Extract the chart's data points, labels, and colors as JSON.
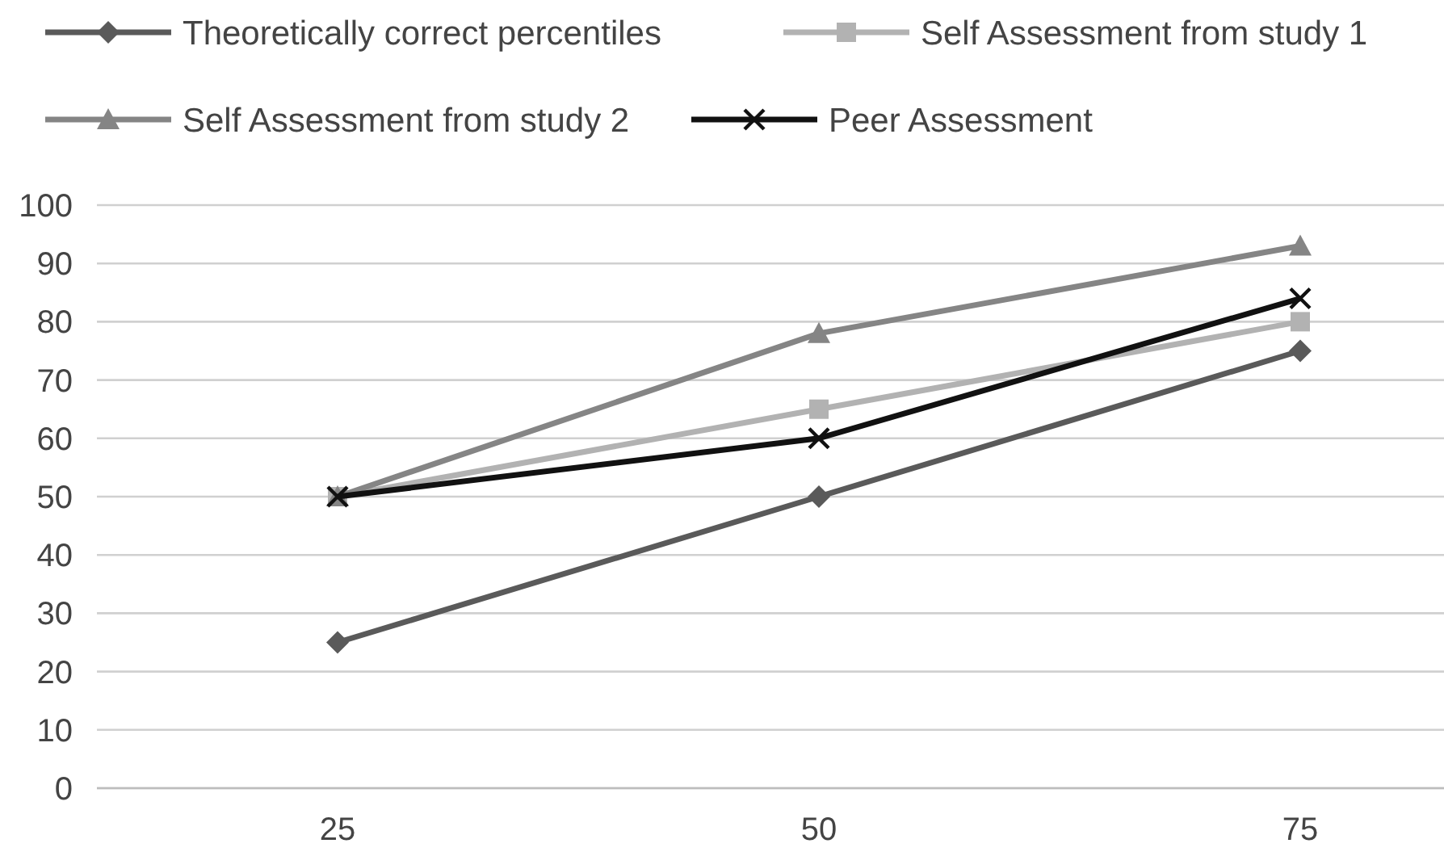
{
  "chart_data": {
    "type": "line",
    "categories": [
      "25",
      "50",
      "75"
    ],
    "series": [
      {
        "name": "Theoretically correct percentiles",
        "color": "#5a5a5a",
        "marker": "diamond",
        "values": [
          25,
          50,
          75
        ]
      },
      {
        "name": "Self Assessment from study 1",
        "color": "#b2b2b2",
        "marker": "square",
        "values": [
          50,
          65,
          80
        ]
      },
      {
        "name": "Self Assessment from study 2",
        "color": "#858585",
        "marker": "triangle",
        "values": [
          50,
          78,
          93
        ]
      },
      {
        "name": "Peer Assessment",
        "color": "#111111",
        "marker": "cross",
        "values": [
          50,
          60,
          84
        ]
      }
    ],
    "ylim": [
      0,
      100
    ],
    "yticks": [
      0,
      10,
      20,
      30,
      40,
      50,
      60,
      70,
      80,
      90,
      100
    ],
    "grid": "y",
    "legend": "top"
  }
}
